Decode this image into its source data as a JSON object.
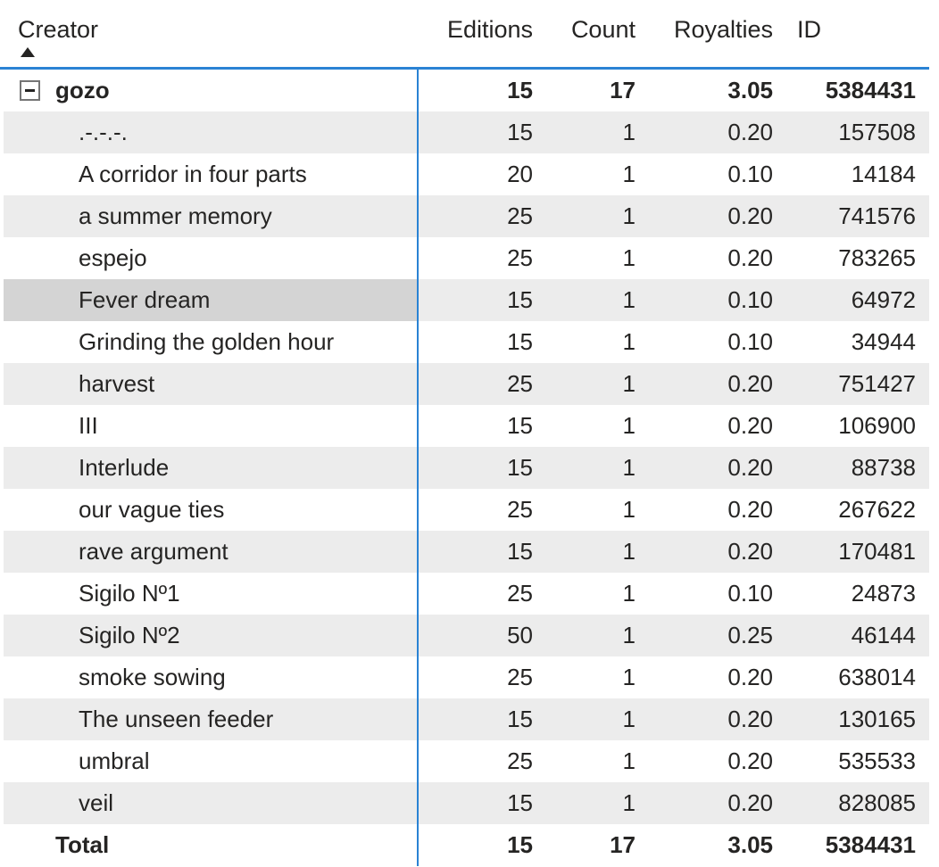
{
  "table": {
    "columns": [
      {
        "key": "creator",
        "label": "Creator",
        "align": "left",
        "sort": "ascending"
      },
      {
        "key": "editions",
        "label": "Editions",
        "align": "right",
        "sort": "none"
      },
      {
        "key": "count",
        "label": "Count",
        "align": "right",
        "sort": "none"
      },
      {
        "key": "royalties",
        "label": "Royalties",
        "align": "right",
        "sort": "none"
      },
      {
        "key": "id",
        "label": "ID",
        "align": "left",
        "sort": "none"
      }
    ],
    "groups": [
      {
        "creator": "gozo",
        "expanded": true,
        "expand_icon": "collapse-minus-box-icon",
        "editions": "15",
        "count": "17",
        "royalties": "3.05",
        "id": "5384431",
        "children": [
          {
            "creator": ".-.-.-.",
            "editions": "15",
            "count": "1",
            "royalties": "0.20",
            "id": "157508",
            "selected": false
          },
          {
            "creator": "A corridor in four parts",
            "editions": "20",
            "count": "1",
            "royalties": "0.10",
            "id": "14184",
            "selected": false
          },
          {
            "creator": "a summer memory",
            "editions": "25",
            "count": "1",
            "royalties": "0.20",
            "id": "741576",
            "selected": false
          },
          {
            "creator": "espejo",
            "editions": "25",
            "count": "1",
            "royalties": "0.20",
            "id": "783265",
            "selected": false
          },
          {
            "creator": "Fever dream",
            "editions": "15",
            "count": "1",
            "royalties": "0.10",
            "id": "64972",
            "selected": true
          },
          {
            "creator": "Grinding the golden hour",
            "editions": "15",
            "count": "1",
            "royalties": "0.10",
            "id": "34944",
            "selected": false
          },
          {
            "creator": "harvest",
            "editions": "25",
            "count": "1",
            "royalties": "0.20",
            "id": "751427",
            "selected": false
          },
          {
            "creator": "III",
            "editions": "15",
            "count": "1",
            "royalties": "0.20",
            "id": "106900",
            "selected": false
          },
          {
            "creator": "Interlude",
            "editions": "15",
            "count": "1",
            "royalties": "0.20",
            "id": "88738",
            "selected": false
          },
          {
            "creator": "our vague ties",
            "editions": "25",
            "count": "1",
            "royalties": "0.20",
            "id": "267622",
            "selected": false
          },
          {
            "creator": "rave argument",
            "editions": "15",
            "count": "1",
            "royalties": "0.20",
            "id": "170481",
            "selected": false
          },
          {
            "creator": "Sigilo Nº1",
            "editions": "25",
            "count": "1",
            "royalties": "0.10",
            "id": "24873",
            "selected": false
          },
          {
            "creator": "Sigilo Nº2",
            "editions": "50",
            "count": "1",
            "royalties": "0.25",
            "id": "46144",
            "selected": false
          },
          {
            "creator": "smoke sowing",
            "editions": "25",
            "count": "1",
            "royalties": "0.20",
            "id": "638014",
            "selected": false
          },
          {
            "creator": "The unseen feeder",
            "editions": "15",
            "count": "1",
            "royalties": "0.20",
            "id": "130165",
            "selected": false
          },
          {
            "creator": "umbral",
            "editions": "25",
            "count": "1",
            "royalties": "0.20",
            "id": "535533",
            "selected": false
          },
          {
            "creator": "veil",
            "editions": "15",
            "count": "1",
            "royalties": "0.20",
            "id": "828085",
            "selected": false
          }
        ]
      }
    ],
    "total": {
      "label": "Total",
      "editions": "15",
      "count": "17",
      "royalties": "3.05",
      "id": "5384431"
    }
  },
  "colors": {
    "accent_blue": "#2A83D4",
    "band_gray": "#ECECEC",
    "selected_gray": "#D4D4D4",
    "text": "#252423"
  }
}
